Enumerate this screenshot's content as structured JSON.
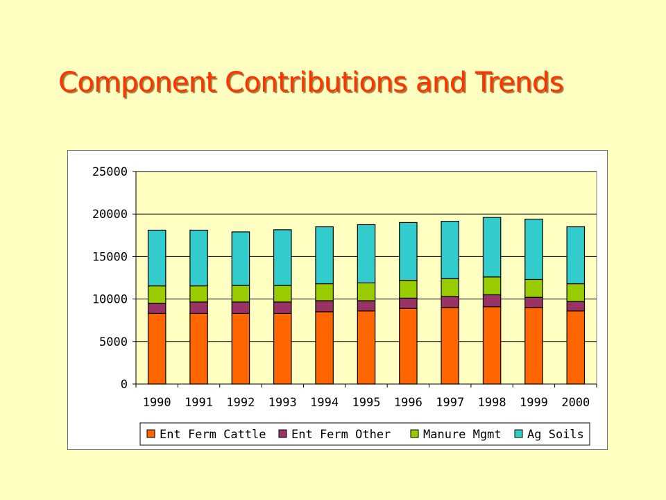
{
  "slide": {
    "title": "Component Contributions and Trends"
  },
  "chart_data": {
    "type": "bar",
    "stacked": true,
    "categories": [
      "1990",
      "1991",
      "1992",
      "1993",
      "1994",
      "1995",
      "1996",
      "1997",
      "1998",
      "1999",
      "2000"
    ],
    "series": [
      {
        "name": "Ent Ferm Cattle",
        "color": "#ff6600",
        "values": [
          8300,
          8300,
          8300,
          8300,
          8500,
          8600,
          8900,
          9000,
          9100,
          9000,
          8600
        ]
      },
      {
        "name": "Ent Ferm Other",
        "color": "#993366",
        "values": [
          1200,
          1350,
          1350,
          1350,
          1300,
          1200,
          1200,
          1300,
          1400,
          1200,
          1100
        ]
      },
      {
        "name": "Manure Mgmt",
        "color": "#99cc00",
        "values": [
          2050,
          1900,
          1950,
          1950,
          2000,
          2100,
          2100,
          2100,
          2100,
          2100,
          2100
        ]
      },
      {
        "name": "Ag Soils",
        "color": "#33cccc",
        "values": [
          6550,
          6550,
          6300,
          6550,
          6700,
          6850,
          6800,
          6750,
          7000,
          7100,
          6700
        ]
      }
    ],
    "ylim": [
      0,
      25000
    ],
    "yticks": [
      "0",
      "5000",
      "10000",
      "15000",
      "20000",
      "25000"
    ],
    "grid": true,
    "legend_position": "bottom",
    "plot_background": "#ffffc2"
  }
}
